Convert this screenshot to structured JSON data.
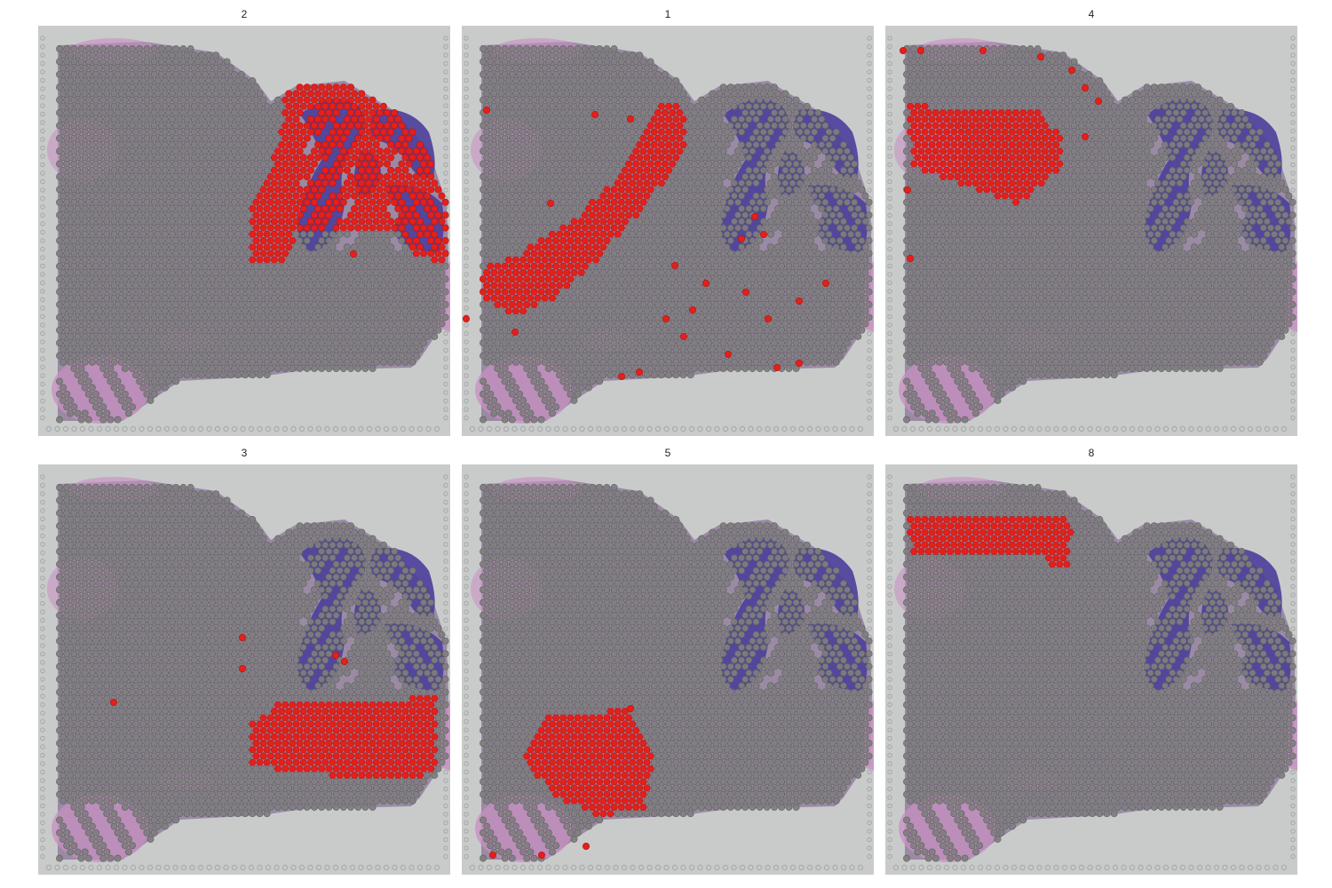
{
  "colors": {
    "slide_background": "#c9cbcb",
    "tissue_pink": "#c78fc2",
    "tissue_purple": "#4b3e9c",
    "spot_gray": "#7f7f7f",
    "spot_outline": "#5e5e5e",
    "highlight_red": "#e3201b",
    "fiducial": "#a9abab"
  },
  "panels": [
    {
      "title": "2",
      "highlight_region": "cerebellum-lobules"
    },
    {
      "title": "1",
      "highlight_region": "diagonal-fiber-tract-and-scattered"
    },
    {
      "title": "4",
      "highlight_region": "upper-left-band"
    },
    {
      "title": "3",
      "highlight_region": "lower-right-brainstem"
    },
    {
      "title": "5",
      "highlight_region": "lower-left-oval"
    },
    {
      "title": "8",
      "highlight_region": "top-left-strip"
    }
  ]
}
